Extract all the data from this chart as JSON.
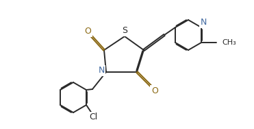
{
  "bg_color": "#ffffff",
  "line_color": "#2a2a2a",
  "figsize": [
    3.71,
    1.88
  ],
  "dpi": 100,
  "atom_colors": {
    "S": "#2a2a2a",
    "N": "#4169a0",
    "O": "#8B6914",
    "Cl": "#2a2a2a"
  },
  "lw": 1.4,
  "dbo": 0.012
}
